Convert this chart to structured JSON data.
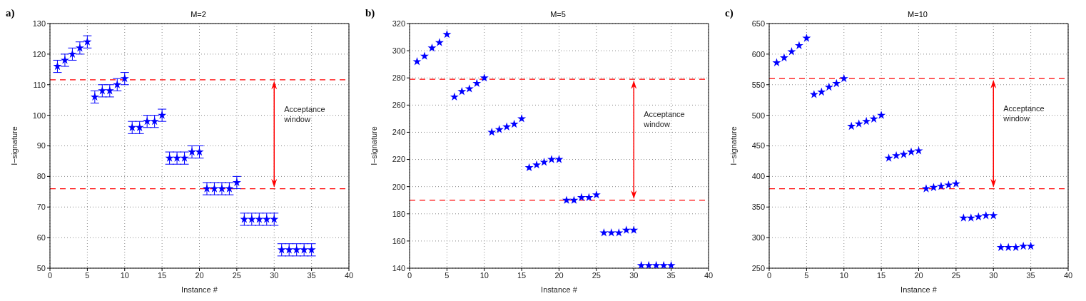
{
  "chart_data": [
    {
      "type": "scatter",
      "title": "M=2",
      "xlabel": "Instance #",
      "ylabel": "I−signature",
      "x": [
        1,
        2,
        3,
        4,
        5,
        6,
        7,
        8,
        9,
        10,
        11,
        12,
        13,
        14,
        15,
        16,
        17,
        18,
        19,
        20,
        21,
        22,
        23,
        24,
        25,
        26,
        27,
        28,
        29,
        30,
        31,
        32,
        33,
        34,
        35
      ],
      "series": [
        {
          "color": "#0000ff",
          "values": [
            116,
            118,
            120,
            122,
            124,
            106,
            108,
            108,
            110,
            112,
            96,
            96,
            98,
            98,
            100,
            86,
            86,
            86,
            88,
            88,
            76,
            76,
            76,
            76,
            78,
            66,
            66,
            66,
            66,
            66,
            56,
            56,
            56,
            56,
            56
          ],
          "errors": [
            2,
            2,
            2,
            2,
            2,
            2,
            2,
            2,
            2,
            2,
            2,
            2,
            2,
            2,
            2,
            2,
            2,
            2,
            2,
            2,
            2,
            2,
            2,
            2,
            2,
            2,
            2,
            2,
            2,
            2,
            2,
            2,
            2,
            2,
            2
          ]
        }
      ],
      "marker": "star",
      "xlim": [
        0,
        40
      ],
      "xticks": [
        0,
        5,
        10,
        15,
        20,
        25,
        30,
        35,
        40
      ],
      "ylim": [
        50,
        130
      ],
      "yticks": [
        50,
        60,
        70,
        80,
        90,
        100,
        110,
        120,
        130
      ],
      "grid": true,
      "line_style": "none",
      "ref_lines": [
        {
          "axis": "y",
          "value": 111.6,
          "color": "#ff0000",
          "line_style": "dashed"
        },
        {
          "axis": "y",
          "value": 76,
          "color": "#ff0000",
          "line_style": "dashed"
        }
      ],
      "annotations": [
        "a)",
        "Acceptance window"
      ]
    },
    {
      "type": "scatter",
      "title": "M=5",
      "xlabel": "Instance #",
      "ylabel": "I−signature",
      "x": [
        1,
        2,
        3,
        4,
        5,
        6,
        7,
        8,
        9,
        10,
        11,
        12,
        13,
        14,
        15,
        16,
        17,
        18,
        19,
        20,
        21,
        22,
        23,
        24,
        25,
        26,
        27,
        28,
        29,
        30,
        31,
        32,
        33,
        34,
        35
      ],
      "series": [
        {
          "color": "#0000ff",
          "values": [
            292,
            296,
            302,
            306,
            312,
            266,
            270,
            272,
            276,
            280,
            240,
            242,
            244,
            246,
            250,
            214,
            216,
            218,
            220,
            220,
            190,
            190,
            192,
            192,
            194,
            166,
            166,
            166,
            168,
            168,
            142,
            142,
            142,
            142,
            142
          ]
        }
      ],
      "marker": "star",
      "xlim": [
        0,
        40
      ],
      "xticks": [
        0,
        5,
        10,
        15,
        20,
        25,
        30,
        35,
        40
      ],
      "ylim": [
        140,
        320
      ],
      "yticks": [
        140,
        160,
        180,
        200,
        220,
        240,
        260,
        280,
        300,
        320
      ],
      "grid": true,
      "line_style": "none",
      "ref_lines": [
        {
          "axis": "y",
          "value": 279,
          "color": "#ff0000",
          "line_style": "dashed"
        },
        {
          "axis": "y",
          "value": 190,
          "color": "#ff0000",
          "line_style": "dashed"
        }
      ],
      "annotations": [
        "b)",
        "Acceptance window"
      ]
    },
    {
      "type": "scatter",
      "title": "M=10",
      "xlabel": "Instance #",
      "ylabel": "I−signature",
      "x": [
        1,
        2,
        3,
        4,
        5,
        6,
        7,
        8,
        9,
        10,
        11,
        12,
        13,
        14,
        15,
        16,
        17,
        18,
        19,
        20,
        21,
        22,
        23,
        24,
        25,
        26,
        27,
        28,
        29,
        30,
        31,
        32,
        33,
        34,
        35
      ],
      "series": [
        {
          "color": "#0000ff",
          "values": [
            586,
            594,
            604,
            614,
            626,
            534,
            538,
            546,
            552,
            560,
            482,
            486,
            490,
            494,
            500,
            430,
            434,
            436,
            440,
            442,
            380,
            382,
            384,
            386,
            388,
            332,
            332,
            334,
            336,
            336,
            284,
            284,
            284,
            286,
            286
          ]
        }
      ],
      "marker": "star",
      "xlim": [
        0,
        40
      ],
      "xticks": [
        0,
        5,
        10,
        15,
        20,
        25,
        30,
        35,
        40
      ],
      "ylim": [
        250,
        650
      ],
      "yticks": [
        250,
        300,
        350,
        400,
        450,
        500,
        550,
        600,
        650
      ],
      "grid": true,
      "line_style": "none",
      "ref_lines": [
        {
          "axis": "y",
          "value": 560,
          "color": "#ff0000",
          "line_style": "dashed"
        },
        {
          "axis": "y",
          "value": 380,
          "color": "#ff0000",
          "line_style": "dashed"
        }
      ],
      "annotations": [
        "c)",
        "Acceptance window"
      ]
    }
  ]
}
